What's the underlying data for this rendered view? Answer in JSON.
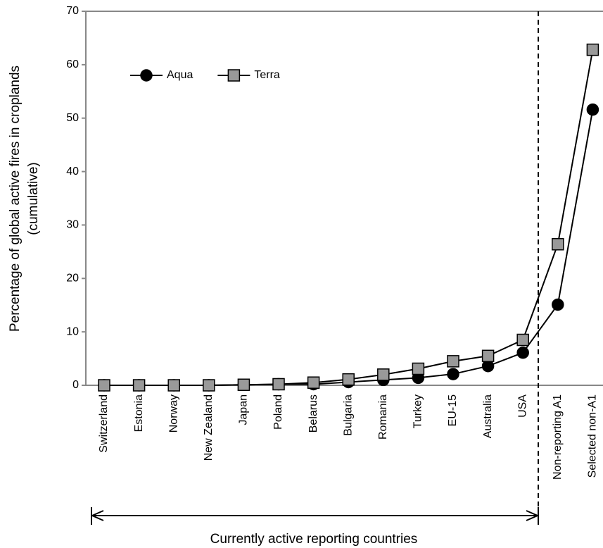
{
  "chart_data": {
    "type": "line",
    "y_label": [
      "Percentage of global active fires in croplands",
      "(cumulative)"
    ],
    "annotation": "Currently active reporting countries",
    "categories": [
      "Switzerland",
      "Estonia",
      "Norway",
      "New Zealand",
      "Japan",
      "Poland",
      "Belarus",
      "Bulgaria",
      "Romania",
      "Turkey",
      "EU-15",
      "Australia",
      "USA",
      "Non-reporting A1",
      "Selected non-A1"
    ],
    "series": [
      {
        "name": "Aqua",
        "color": "#000000",
        "marker": "circle",
        "values": [
          0,
          0,
          0,
          0,
          0.1,
          0.2,
          0.2,
          0.6,
          1.0,
          1.4,
          2.1,
          3.6,
          6.1,
          15.1,
          51.6
        ]
      },
      {
        "name": "Terra",
        "color": "#999999",
        "marker": "square",
        "values": [
          0,
          0,
          0,
          0,
          0.1,
          0.2,
          0.5,
          1.1,
          2.0,
          3.1,
          4.5,
          5.5,
          8.5,
          26.4,
          62.8
        ]
      }
    ],
    "ylim": [
      0,
      70
    ],
    "yticks": [
      0,
      10,
      20,
      30,
      40,
      50,
      60,
      70
    ],
    "legend": "upper left",
    "grid": false
  }
}
